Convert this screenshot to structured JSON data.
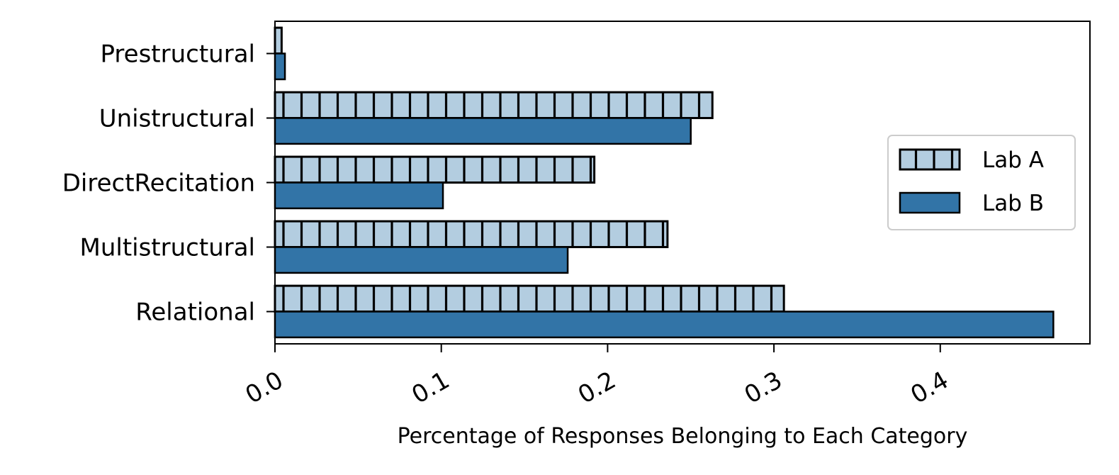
{
  "chart_data": {
    "type": "bar",
    "orientation": "horizontal",
    "categories": [
      "Prestructural",
      "Unistructural",
      "DirectRecitation",
      "Multistructural",
      "Relational"
    ],
    "series": [
      {
        "name": "Lab A",
        "values": [
          0.004,
          0.263,
          0.192,
          0.236,
          0.306
        ],
        "color": "#b3cde0",
        "hatch": "vertical-stripes"
      },
      {
        "name": "Lab B",
        "values": [
          0.006,
          0.25,
          0.101,
          0.176,
          0.468
        ],
        "color": "#3274a7",
        "hatch": "none"
      }
    ],
    "xlabel": "Percentage of Responses Belonging to Each Category",
    "ylabel": "",
    "xlim": [
      0,
      0.49
    ],
    "xticks": [
      "0.0",
      "0.1",
      "0.2",
      "0.3",
      "0.4"
    ],
    "grid": false,
    "legend_position": "center-right"
  }
}
